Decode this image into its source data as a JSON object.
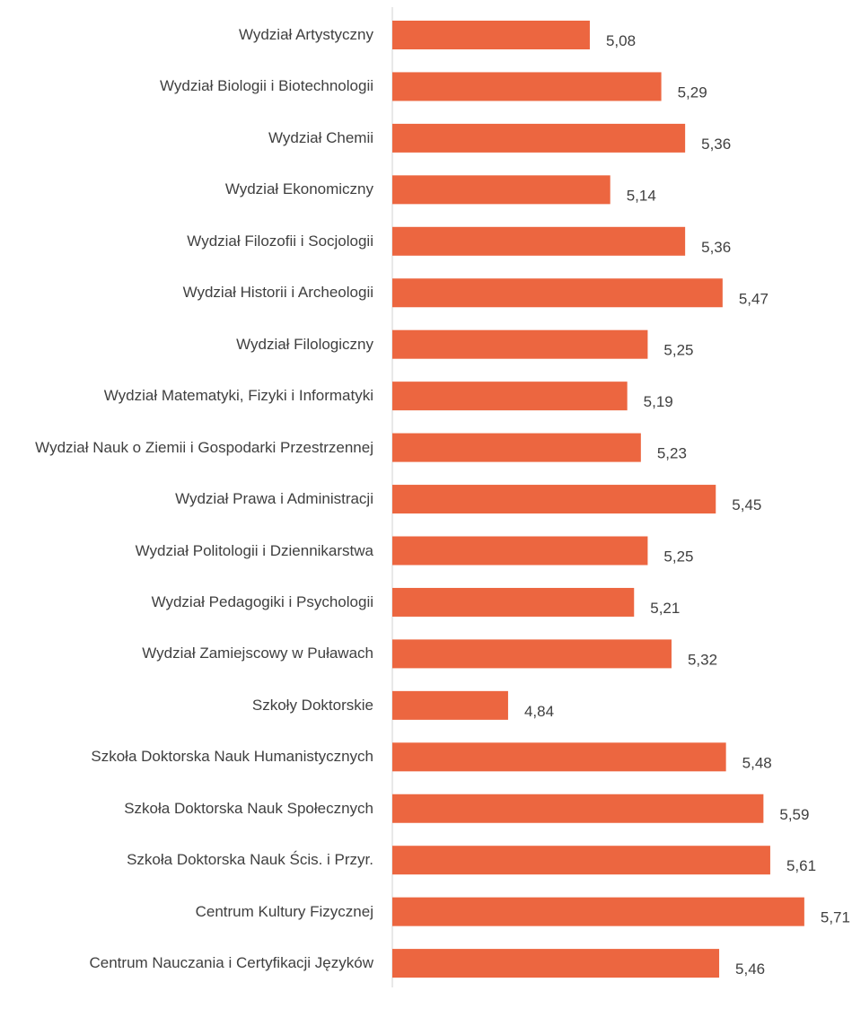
{
  "chart_data": {
    "type": "bar",
    "orientation": "horizontal",
    "categories": [
      "Wydział Artystyczny",
      "Wydział Biologii i Biotechnologii",
      "Wydział Chemii",
      "Wydział Ekonomiczny",
      "Wydział Filozofii i Socjologii",
      "Wydział Historii i Archeologii",
      "Wydział Filologiczny",
      "Wydział Matematyki, Fizyki i Informatyki",
      "Wydział Nauk o Ziemii i Gospodarki Przestrzennej",
      "Wydział Prawa i Administracji",
      "Wydział Politologii i Dziennikarstwa",
      "Wydział Pedagogiki i Psychologii",
      "Wydział Zamiejscowy w Puławach",
      "Szkoły Doktorskie",
      "Szkoła Doktorska Nauk Humanistycznych",
      "Szkoła Doktorska Nauk Społecznych",
      "Szkoła Doktorska Nauk Ścis. i Przyr.",
      "Centrum Kultury Fizycznej",
      "Centrum Nauczania i Certyfikacji Języków"
    ],
    "values": [
      5.08,
      5.29,
      5.36,
      5.14,
      5.36,
      5.47,
      5.25,
      5.19,
      5.23,
      5.45,
      5.25,
      5.21,
      5.32,
      4.84,
      5.48,
      5.59,
      5.61,
      5.71,
      5.46
    ],
    "value_labels": [
      "5,08",
      "5,29",
      "5,36",
      "5,14",
      "5,36",
      "5,47",
      "5,25",
      "5,19",
      "5,23",
      "5,45",
      "5,25",
      "5,21",
      "5,32",
      "4,84",
      "5,48",
      "5,59",
      "5,61",
      "5,71",
      "5,46"
    ],
    "color": "#ec6640",
    "xlim": [
      4.5,
      5.8
    ]
  }
}
